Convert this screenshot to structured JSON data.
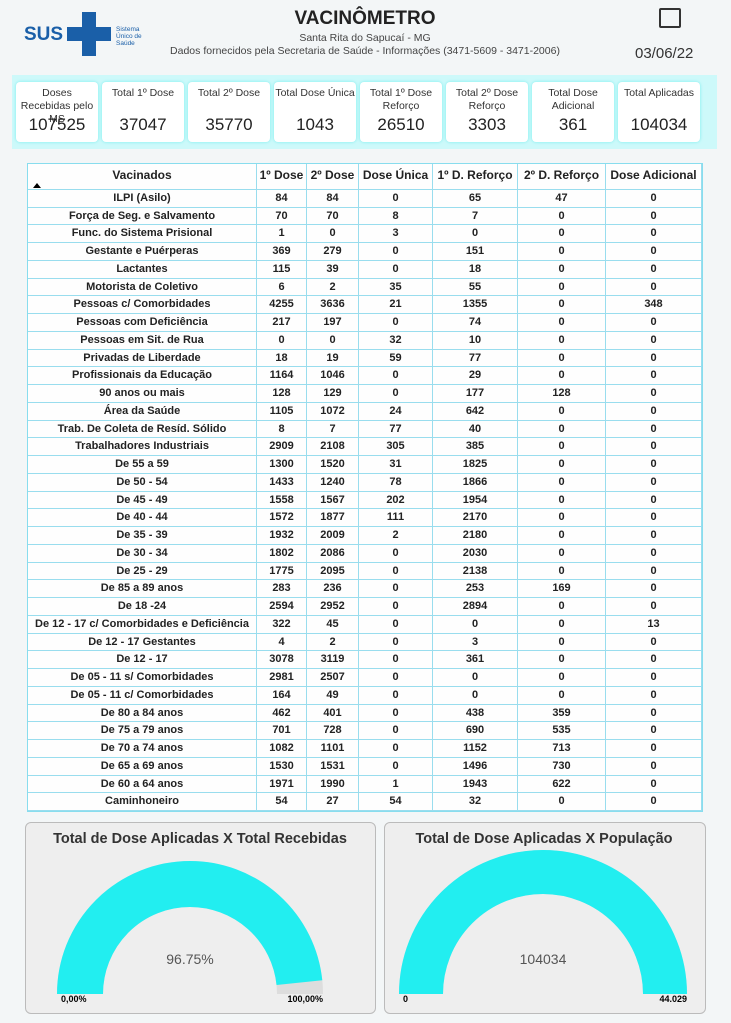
{
  "header": {
    "logo": "SUS",
    "logo_subtitle": "Sistema Único de Saúde",
    "title": "VACINÔMETRO",
    "location": "Santa Rita do Sapucaí - MG",
    "source": "Dados fornecidos pela Secretaria de Saúde - Informações (3471-5609 - 3471-2006)",
    "date": "03/06/22"
  },
  "kpis": [
    {
      "label": "Doses Recebidas pelo MS",
      "value": 107525
    },
    {
      "label": "Total 1º Dose",
      "value": 37047
    },
    {
      "label": "Total 2º Dose",
      "value": 35770
    },
    {
      "label": "Total Dose Única",
      "value": 1043
    },
    {
      "label": "Total 1º Dose Reforço",
      "value": 26510
    },
    {
      "label": "Total 2º Dose Reforço",
      "value": 3303
    },
    {
      "label": "Total Dose Adicional",
      "value": 361
    },
    {
      "label": "Total Aplicadas",
      "value": 104034
    }
  ],
  "table": {
    "columns": [
      "Vacinados",
      "1º Dose",
      "2º Dose",
      "Dose Única",
      "1º  D. Reforço",
      "2º  D. Reforço",
      "Dose Adicional"
    ],
    "rows": [
      [
        "ILPI (Asilo)",
        84,
        84,
        0,
        65,
        47,
        0
      ],
      [
        "Força de Seg. e Salvamento",
        70,
        70,
        8,
        7,
        0,
        0
      ],
      [
        "Func. do Sistema Prisional",
        1,
        0,
        3,
        0,
        0,
        0
      ],
      [
        "Gestante e Puérperas",
        369,
        279,
        0,
        151,
        0,
        0
      ],
      [
        "Lactantes",
        115,
        39,
        0,
        18,
        0,
        0
      ],
      [
        "Motorista de Coletivo",
        6,
        2,
        35,
        55,
        0,
        0
      ],
      [
        "Pessoas c/ Comorbidades",
        4255,
        3636,
        21,
        1355,
        0,
        348
      ],
      [
        "Pessoas com Deficiência",
        217,
        197,
        0,
        74,
        0,
        0
      ],
      [
        "Pessoas em Sit. de Rua",
        0,
        0,
        32,
        10,
        0,
        0
      ],
      [
        "Privadas de Liberdade",
        18,
        19,
        59,
        77,
        0,
        0
      ],
      [
        "Profissionais da Educação",
        1164,
        1046,
        0,
        29,
        0,
        0
      ],
      [
        "90 anos ou mais",
        128,
        129,
        0,
        177,
        128,
        0
      ],
      [
        "Área da Saúde",
        1105,
        1072,
        24,
        642,
        0,
        0
      ],
      [
        "Trab. De Coleta de Resíd. Sólido",
        8,
        7,
        77,
        40,
        0,
        0
      ],
      [
        "Trabalhadores Industriais",
        2909,
        2108,
        305,
        385,
        0,
        0
      ],
      [
        "De 55 a 59",
        1300,
        1520,
        31,
        1825,
        0,
        0
      ],
      [
        "De 50 - 54",
        1433,
        1240,
        78,
        1866,
        0,
        0
      ],
      [
        "De 45 - 49",
        1558,
        1567,
        202,
        1954,
        0,
        0
      ],
      [
        "De 40 - 44",
        1572,
        1877,
        111,
        2170,
        0,
        0
      ],
      [
        "De 35 - 39",
        1932,
        2009,
        2,
        2180,
        0,
        0
      ],
      [
        "De 30 - 34",
        1802,
        2086,
        0,
        2030,
        0,
        0
      ],
      [
        "De 25 - 29",
        1775,
        2095,
        0,
        2138,
        0,
        0
      ],
      [
        "De 85 a 89 anos",
        283,
        236,
        0,
        253,
        169,
        0
      ],
      [
        "De 18 -24",
        2594,
        2952,
        0,
        2894,
        0,
        0
      ],
      [
        "De 12 - 17 c/ Comorbidades e Deficiência",
        322,
        45,
        0,
        0,
        0,
        13
      ],
      [
        "De 12 - 17 Gestantes",
        4,
        2,
        0,
        3,
        0,
        0
      ],
      [
        "De 12 - 17",
        3078,
        3119,
        0,
        361,
        0,
        0
      ],
      [
        "De 05 - 11 s/ Comorbidades",
        2981,
        2507,
        0,
        0,
        0,
        0
      ],
      [
        "De 05 - 11 c/ Comorbidades",
        164,
        49,
        0,
        0,
        0,
        0
      ],
      [
        "De 80 a 84 anos",
        462,
        401,
        0,
        438,
        359,
        0
      ],
      [
        "De 75 a 79 anos",
        701,
        728,
        0,
        690,
        535,
        0
      ],
      [
        "De 70 a 74 anos",
        1082,
        1101,
        0,
        1152,
        713,
        0
      ],
      [
        "De 65 a 69 anos",
        1530,
        1531,
        0,
        1496,
        730,
        0
      ],
      [
        "De 60 a 64 anos",
        1971,
        1990,
        1,
        1943,
        622,
        0
      ],
      [
        "Caminhoneiro",
        54,
        27,
        54,
        32,
        0,
        0
      ]
    ]
  },
  "gauges": [
    {
      "title": "Total de Dose Aplicadas X Total Recebidas",
      "value": {
        "value": 96.75,
        "label": "96.75%"
      },
      "min": {
        "value": 0,
        "label": "0,00%"
      },
      "max": {
        "value": 100,
        "label": "100,00%"
      },
      "color": "#22eef0"
    },
    {
      "title": "Total de Dose Aplicadas X População",
      "value": 104034,
      "min": 0,
      "max": {
        "value": 44029,
        "label": "44.029"
      },
      "color": "#22eef0"
    }
  ]
}
